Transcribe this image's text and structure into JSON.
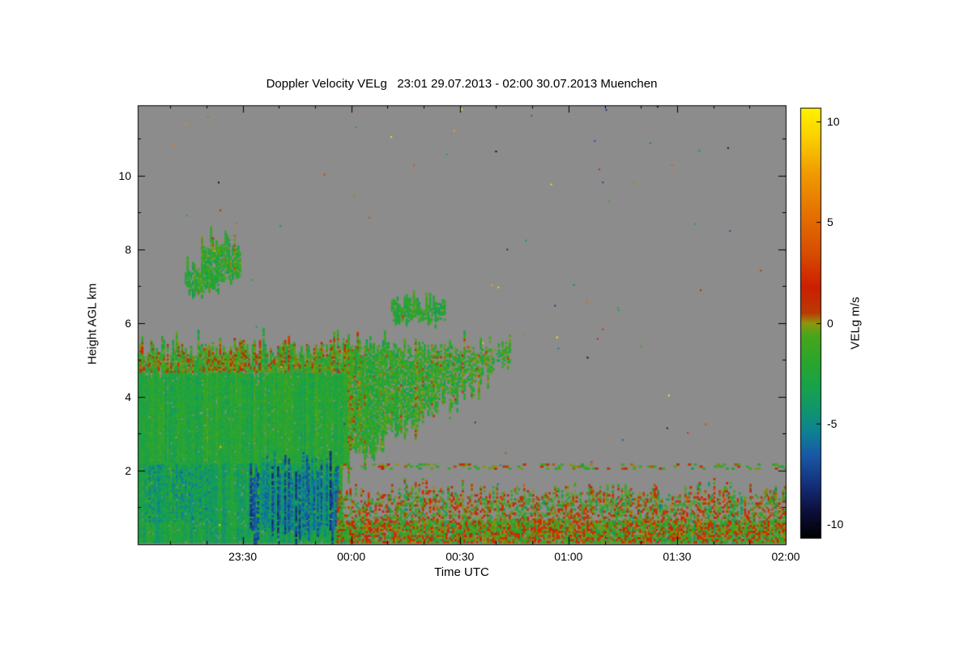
{
  "figure": {
    "background": "#ffffff",
    "plot_background": "#8c8c8c",
    "axis_color": "#000000",
    "text_color": "#000000"
  },
  "chart_data": {
    "type": "heatmap",
    "title": "Doppler Velocity VELg   23:01 29.07.2013 - 02:00 30.07.2013 Muenchen",
    "station": "Muenchen",
    "time_start": "23:01 29.07.2013",
    "time_end": "02:00 30.07.2013",
    "xlabel": "Time UTC",
    "ylabel": "Height AGL km",
    "colorbar_label": "VELg m/s",
    "x_range_minutes_after_2300": [
      1,
      180
    ],
    "x_ticks": [
      {
        "minute": 30,
        "label": "23:30"
      },
      {
        "minute": 60,
        "label": "00:00"
      },
      {
        "minute": 90,
        "label": "00:30"
      },
      {
        "minute": 120,
        "label": "01:00"
      },
      {
        "minute": 150,
        "label": "01:30"
      },
      {
        "minute": 180,
        "label": "02:00"
      }
    ],
    "x_minor_step": 10,
    "y_range_km": [
      0,
      11.9
    ],
    "y_ticks": [
      {
        "km": 2,
        "label": "2"
      },
      {
        "km": 4,
        "label": "4"
      },
      {
        "km": 6,
        "label": "6"
      },
      {
        "km": 8,
        "label": "8"
      },
      {
        "km": 10,
        "label": "10"
      }
    ],
    "y_minor_step": 1,
    "colorbar": {
      "vmin": -10.7,
      "vmax": 10.7,
      "ticks": [
        {
          "value": 10,
          "label": "10"
        },
        {
          "value": 5,
          "label": "5"
        },
        {
          "value": 0,
          "label": "0"
        },
        {
          "value": -5,
          "label": "-5"
        },
        {
          "value": -10,
          "label": "-10"
        }
      ]
    },
    "colormap_stops": [
      {
        "v": -10.7,
        "c": "#000000"
      },
      {
        "v": -9.4,
        "c": "#0b0e3a"
      },
      {
        "v": -8.0,
        "c": "#15307c"
      },
      {
        "v": -6.6,
        "c": "#1858a6"
      },
      {
        "v": -5.4,
        "c": "#0d8292"
      },
      {
        "v": -4.4,
        "c": "#109471"
      },
      {
        "v": -3.2,
        "c": "#17a24b"
      },
      {
        "v": -1.8,
        "c": "#2ca62a"
      },
      {
        "v": -0.6,
        "c": "#49a51b"
      },
      {
        "v": 0.0,
        "c": "#8f960e"
      },
      {
        "v": 0.5,
        "c": "#bb3a04"
      },
      {
        "v": 1.8,
        "c": "#cc1f00"
      },
      {
        "v": 3.5,
        "c": "#d84d00"
      },
      {
        "v": 5.5,
        "c": "#e57200"
      },
      {
        "v": 7.5,
        "c": "#f09c00"
      },
      {
        "v": 9.3,
        "c": "#fbd100"
      },
      {
        "v": 10.7,
        "c": "#fff200"
      }
    ],
    "seed": 1337,
    "random_speckle_count": 90,
    "regions": [
      {
        "name": "precip-core-mid",
        "t0": 1,
        "t1": 59,
        "h0": 2.15,
        "h1": 4.65,
        "base": -2.3,
        "col_var": 0.7,
        "cell_var": 0.8,
        "density": 0.98,
        "jit_top": 0.1
      },
      {
        "name": "cloud-top-fringe",
        "t0": 1,
        "t1": 63,
        "h0": 4.65,
        "h1": 5.3,
        "base": -0.9,
        "col_var": 1.1,
        "cell_var": 1.7,
        "density": 0.93,
        "jit_top": 0.3
      },
      {
        "name": "precip-core-low",
        "t0": 1,
        "t1": 57.5,
        "h0": 0.03,
        "h1": 2.15,
        "base": -3.0,
        "col_var": 0.9,
        "cell_var": 0.9,
        "density": 0.97
      },
      {
        "name": "teal-patch-low",
        "t0": 3,
        "t1": 22,
        "h0": 0.6,
        "h1": 2.1,
        "base": -4.3,
        "col_var": 1.0,
        "cell_var": 0.8,
        "density": 0.45
      },
      {
        "name": "downdraft-streaks",
        "t0": 32,
        "t1": 56.5,
        "h0": 0.25,
        "h1": 2.05,
        "base": -5.8,
        "col_var": 1.6,
        "cell_var": 0.9,
        "density": 0.8,
        "jit_top": 0.3,
        "jit_bot": 0.2
      },
      {
        "name": "anvil-wedge",
        "t0": 59,
        "t1": 104,
        "h0": 2.25,
        "h0_end": 4.95,
        "h1": 5.35,
        "h1_end": 5.3,
        "base": -1.6,
        "col_var": 0.9,
        "cell_var": 1.3,
        "density": 0.92,
        "density_end": 0.55,
        "jit_top": 0.25,
        "jit_bot": 0.35
      },
      {
        "name": "boundary-layer-noise",
        "t0": 56,
        "t1": 180,
        "h0": 0.03,
        "h1": 1.35,
        "base": -0.3,
        "col_var": 1.2,
        "cell_var": 2.4,
        "density": 0.5,
        "jit_top": 0.25
      },
      {
        "name": "boundary-layer-noise-dense",
        "t0": 56,
        "t1": 180,
        "h0": 0.03,
        "h1": 0.6,
        "base": -0.3,
        "col_var": 1.0,
        "cell_var": 2.2,
        "density": 0.75
      },
      {
        "name": "residual-layer-line",
        "t0": 57,
        "t1": 180,
        "h0": 2.02,
        "h1": 2.18,
        "base": -0.4,
        "col_var": 0.8,
        "cell_var": 1.4,
        "density": 0.28,
        "cell_t": 0.8
      },
      {
        "name": "midlevel-cloud-a",
        "t0": 18.5,
        "t1": 29.5,
        "h0": 7.15,
        "h1": 8.15,
        "base": -1.7,
        "col_var": 0.8,
        "cell_var": 1.1,
        "density": 0.85,
        "jit_top": 0.25,
        "jit_bot": 0.3
      },
      {
        "name": "midlevel-cloud-b",
        "t0": 14,
        "t1": 23.5,
        "h0": 6.85,
        "h1": 7.5,
        "base": -2.2,
        "col_var": 0.7,
        "cell_var": 1.0,
        "density": 0.8,
        "jit_top": 0.2,
        "jit_bot": 0.2
      },
      {
        "name": "midlevel-cloud-c",
        "t0": 71,
        "t1": 86,
        "h0": 6.05,
        "h1": 6.55,
        "base": -2.0,
        "col_var": 0.7,
        "cell_var": 1.0,
        "density": 0.8,
        "jit_top": 0.2,
        "jit_bot": 0.15
      }
    ]
  }
}
